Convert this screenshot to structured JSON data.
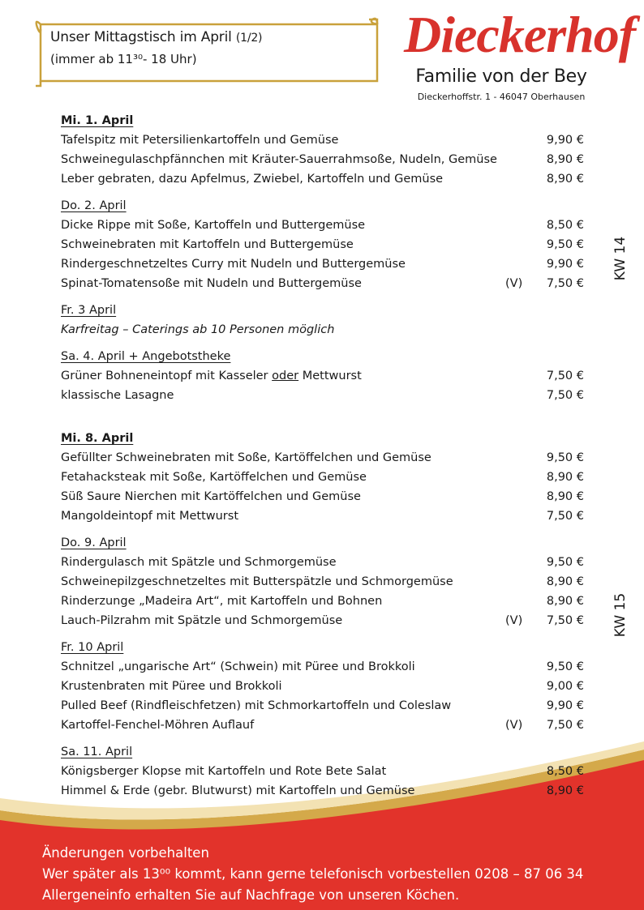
{
  "header": {
    "title": "Unser Mittagstisch im April",
    "part": "(1/2)",
    "hours": "(immer ab 11³⁰- 18 Uhr)"
  },
  "brand": {
    "name": "Dieckerhof",
    "subtitle": "Familie von der Bey",
    "address": "Dieckerhoffstr. 1 - 46047 Oberhausen"
  },
  "weeks": [
    {
      "label": "KW 14",
      "days": [
        {
          "title": "Mi. 1. April",
          "bold": true,
          "items": [
            {
              "name": "Tafelspitz mit Petersilienkartoffeln und Gemüse",
              "price": "9,90 €"
            },
            {
              "name": "Schweinegulaschpfännchen mit Kräuter-Sauerrahmsoße, Nudeln, Gemüse",
              "price": "8,90 €"
            },
            {
              "name": "Leber gebraten, dazu Apfelmus, Zwiebel, Kartoffeln und Gemüse",
              "price": "8,90 €"
            }
          ]
        },
        {
          "title": "Do. 2. April",
          "items": [
            {
              "name": "Dicke Rippe mit Soße, Kartoffeln und Buttergemüse",
              "price": "8,50 €"
            },
            {
              "name": "Schweinebraten mit Kartoffeln und Buttergemüse",
              "price": "9,50 €"
            },
            {
              "name": "Rindergeschnetzeltes Curry mit Nudeln und Buttergemüse",
              "price": "9,90 €"
            },
            {
              "name": "Spinat-Tomatensoße mit Nudeln und Buttergemüse",
              "tag": "(V)",
              "price": "7,50 €"
            }
          ]
        },
        {
          "title": "Fr. 3 April",
          "note": "Karfreitag – Caterings ab 10 Personen möglich"
        },
        {
          "title": "Sa. 4. April + Angebotstheke",
          "items": [
            {
              "name": [
                "Grüner Bohneneintopf mit Kasseler ",
                "oder",
                " Mettwurst"
              ],
              "price": "7,50 €"
            },
            {
              "name": "klassische Lasagne",
              "price": "7,50 €"
            }
          ]
        }
      ]
    },
    {
      "label": "KW 15",
      "days": [
        {
          "title": "Mi. 8. April",
          "bold": true,
          "items": [
            {
              "name": "Gefüllter Schweinebraten mit Soße, Kartöffelchen und Gemüse",
              "price": "9,50 €"
            },
            {
              "name": "Fetahacksteak mit Soße, Kartöffelchen und Gemüse",
              "price": "8,90 €"
            },
            {
              "name": "Süß Saure Nierchen mit Kartöffelchen und Gemüse",
              "price": "8,90 €"
            },
            {
              "name": "Mangoldeintopf mit Mettwurst",
              "price": "7,50 €"
            }
          ]
        },
        {
          "title": "Do. 9. April",
          "items": [
            {
              "name": "Rindergulasch mit Spätzle und Schmorgemüse",
              "price": "9,50 €"
            },
            {
              "name": "Schweinepilzgeschnetzeltes mit Butterspätzle und Schmorgemüse",
              "price": "8,90 €"
            },
            {
              "name": "Rinderzunge „Madeira Art“, mit Kartoffeln und Bohnen",
              "price": "8,90 €"
            },
            {
              "name": "Lauch-Pilzrahm mit Spätzle und Schmorgemüse",
              "tag": "(V)",
              "price": "7,50 €"
            }
          ]
        },
        {
          "title": "Fr. 10 April",
          "items": [
            {
              "name": "Schnitzel „ungarische Art“ (Schwein) mit Püree und Brokkoli",
              "price": "9,50 €"
            },
            {
              "name": "Krustenbraten mit Püree und Brokkoli",
              "price": "9,00 €"
            },
            {
              "name": "Pulled Beef (Rindfleischfetzen) mit Schmorkartoffeln und Coleslaw",
              "price": "9,90 €"
            },
            {
              "name": "Kartoffel-Fenchel-Möhren Auflauf",
              "tag": "(V)",
              "price": "7,50 €"
            }
          ]
        },
        {
          "title": "Sa. 11. April",
          "items": [
            {
              "name": "Königsberger Klopse mit Kartoffeln und Rote Bete Salat",
              "price": "8,50 €"
            },
            {
              "name": "Himmel & Erde (gebr. Blutwurst) mit Kartoffeln und Gemüse",
              "price": "8,90 €"
            }
          ]
        }
      ]
    }
  ],
  "footer": {
    "lines": [
      "Änderungen vorbehalten",
      "Wer später als 13⁰⁰ kommt, kann gerne telefonisch vorbestellen 0208 – 87 06 34",
      "Allergeneinfo erhalten Sie auf Nachfrage von unseren Köchen."
    ]
  }
}
